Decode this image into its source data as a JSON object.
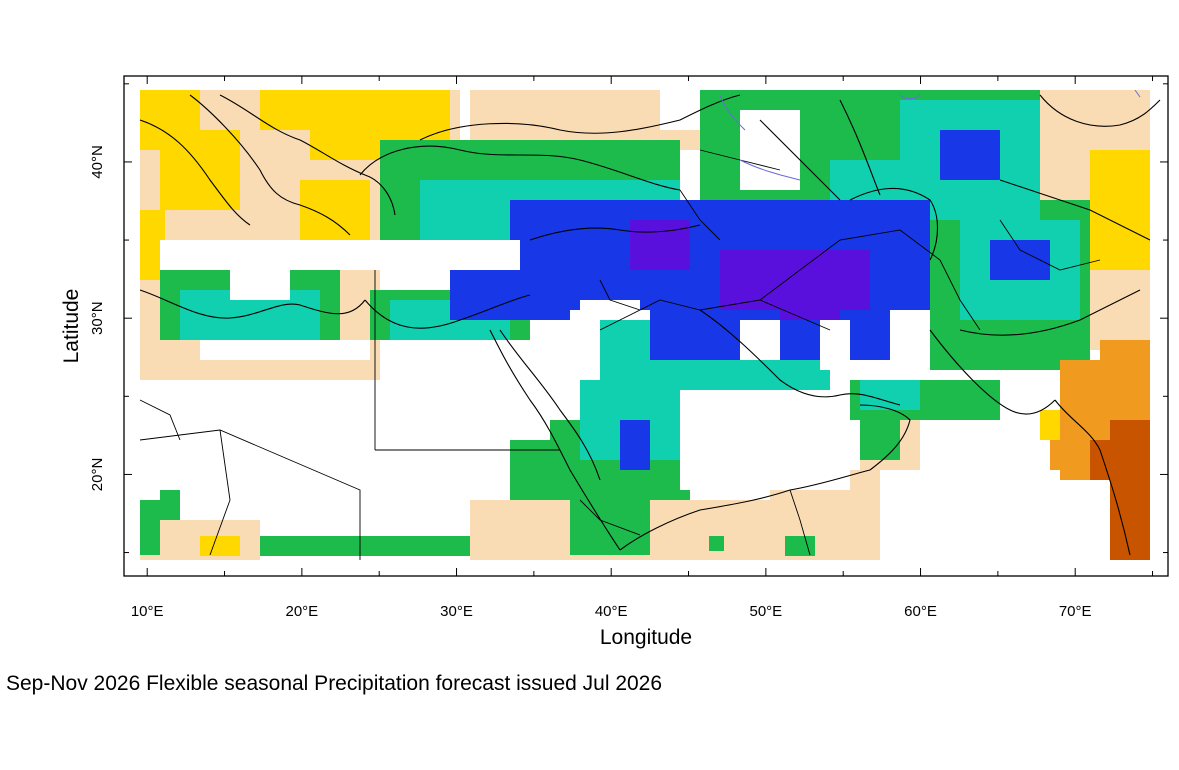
{
  "caption": "Sep-Nov 2026 Flexible seasonal Precipitation forecast issued Jul 2026",
  "axes": {
    "xlabel": "Longitude",
    "ylabel": "Latitude",
    "x_ticks": [
      "10°E",
      "20°E",
      "30°E",
      "40°E",
      "50°E",
      "60°E",
      "70°E"
    ],
    "y_ticks": [
      "40°N",
      "30°N",
      "20°N"
    ]
  },
  "map_extent": {
    "lon": [
      8.5,
      76
    ],
    "lat": [
      13.5,
      45.5
    ]
  },
  "colors": {
    "dry_strong": "#c85400",
    "dry_moderate": "#f09a20",
    "dry_weak": "#ffd800",
    "neutral_dry": "#f9dcb4",
    "wet_weak": "#1dbb4c",
    "wet_moderate": "#10d0b0",
    "wet_strong": "#1838e8",
    "wet_extreme": "#5a10dc",
    "coastline": "#000000",
    "rivers": "#6a6ad8"
  }
}
